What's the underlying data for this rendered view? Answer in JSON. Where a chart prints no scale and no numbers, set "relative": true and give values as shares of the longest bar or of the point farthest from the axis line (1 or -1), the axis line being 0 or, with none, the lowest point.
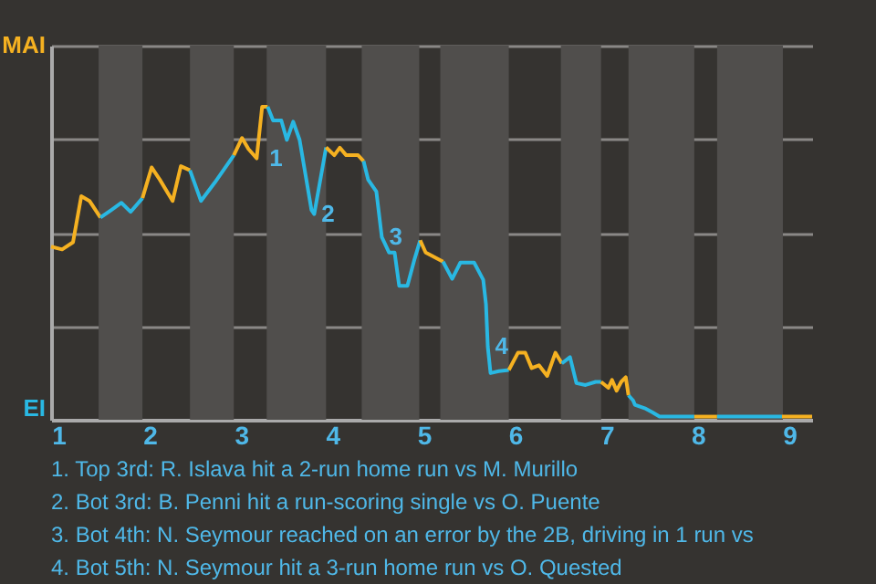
{
  "chart_data": {
    "type": "line",
    "relative": true,
    "xlim": [
      0.92,
      9.25
    ],
    "xticks": [
      1,
      2,
      3,
      4,
      5,
      6,
      7,
      8,
      9
    ],
    "grid": "y",
    "marker": "none",
    "line_style": "solid",
    "series": [
      {
        "color": "#f5b121",
        "x": [
          0.92,
          1.04,
          1.16,
          1.25,
          1.34,
          1.46
        ],
        "values": [
          0.553,
          0.544,
          0.567,
          0.714,
          0.699,
          0.646
        ]
      },
      {
        "color": "#29b8e3",
        "x": [
          1.46,
          1.58,
          1.69,
          1.79,
          1.92
        ],
        "values": [
          0.646,
          0.67,
          0.693,
          0.664,
          0.708
        ]
      },
      {
        "color": "#f5b121",
        "x": [
          1.92,
          2.02,
          2.11,
          2.25,
          2.34,
          2.44
        ],
        "values": [
          0.708,
          0.806,
          0.767,
          0.699,
          0.81,
          0.797
        ]
      },
      {
        "color": "#29b8e3",
        "x": [
          2.44,
          2.56,
          2.71,
          2.92
        ],
        "values": [
          0.797,
          0.699,
          0.757,
          0.845
        ]
      },
      {
        "color": "#f5b121",
        "x": [
          2.92,
          3.01,
          3.08,
          3.17,
          3.23,
          3.29
        ],
        "values": [
          0.845,
          0.9,
          0.865,
          0.835,
          1,
          1
        ]
      },
      {
        "color": "#29b8e3",
        "x": [
          3.29,
          3.35,
          3.44,
          3.5,
          3.57,
          3.64,
          3.77,
          3.8,
          3.93
        ],
        "values": [
          1,
          0.956,
          0.956,
          0.894,
          0.952,
          0.894,
          0.67,
          0.657,
          0.87
        ]
      },
      {
        "color": "#f5b121",
        "x": [
          3.93,
          4.02,
          4.08,
          4.15,
          4.28,
          4.34
        ],
        "values": [
          0.87,
          0.845,
          0.869,
          0.845,
          0.845,
          0.826
        ]
      },
      {
        "color": "#29b8e3",
        "x": [
          4.34,
          4.39,
          4.48,
          4.54,
          4.62,
          4.68,
          4.73,
          4.82,
          4.9,
          4.96
        ],
        "values": [
          0.826,
          0.767,
          0.729,
          0.583,
          0.534,
          0.534,
          0.428,
          0.428,
          0.515,
          0.573
        ]
      },
      {
        "color": "#f5b121",
        "x": [
          4.96,
          5.02,
          5.21
        ],
        "values": [
          0.573,
          0.534,
          0.505
        ]
      },
      {
        "color": "#29b8e3",
        "x": [
          5.21,
          5.31,
          5.4,
          5.55,
          5.65,
          5.68,
          5.7,
          5.73,
          5.82,
          5.93
        ],
        "values": [
          0.505,
          0.45,
          0.502,
          0.502,
          0.447,
          0.369,
          0.233,
          0.149,
          0.155,
          0.159
        ]
      },
      {
        "color": "#f5b121",
        "x": [
          5.93,
          6.03,
          6.11,
          6.18,
          6.26,
          6.35,
          6.44,
          6.51
        ],
        "values": [
          0.159,
          0.214,
          0.214,
          0.165,
          0.174,
          0.14,
          0.214,
          0.18
        ]
      },
      {
        "color": "#29b8e3",
        "x": [
          6.51,
          6.6,
          6.67,
          6.77,
          6.88,
          6.94
        ],
        "values": [
          0.18,
          0.2,
          0.117,
          0.111,
          0.121,
          0.121
        ]
      },
      {
        "color": "#f5b121",
        "x": [
          6.94,
          7.02,
          7.06,
          7.11,
          7.16,
          7.21,
          7.24
        ],
        "values": [
          0.121,
          0.102,
          0.127,
          0.093,
          0.121,
          0.136,
          0.078
        ]
      },
      {
        "color": "#29b8e3",
        "x": [
          7.24,
          7.29,
          7.31,
          7.43,
          7.5,
          7.58,
          7.94,
          7.96
        ],
        "values": [
          0.078,
          0.062,
          0.048,
          0.035,
          0.024,
          0.01,
          0.01,
          0.01
        ]
      },
      {
        "color": "#f5b121",
        "x": [
          7.96,
          8.21
        ],
        "values": [
          0.01,
          0.01
        ]
      },
      {
        "color": "#29b8e3",
        "x": [
          8.21,
          8.92
        ],
        "values": [
          0.01,
          0.01
        ]
      },
      {
        "color": "#f5b121",
        "x": [
          8.92,
          9.25
        ],
        "values": [
          0.01,
          0.01
        ]
      }
    ],
    "bands": [
      {
        "axis": "x",
        "from": 1.44,
        "to": 1.92,
        "color": "#504e4c"
      },
      {
        "axis": "x",
        "from": 2.44,
        "to": 2.92,
        "color": "#504e4c"
      },
      {
        "axis": "x",
        "from": 3.28,
        "to": 3.93,
        "color": "#504e4c"
      },
      {
        "axis": "x",
        "from": 4.32,
        "to": 4.95,
        "color": "#504e4c"
      },
      {
        "axis": "x",
        "from": 5.18,
        "to": 5.93,
        "color": "#504e4c"
      },
      {
        "axis": "x",
        "from": 6.5,
        "to": 6.94,
        "color": "#504e4c"
      },
      {
        "axis": "x",
        "from": 7.24,
        "to": 7.96,
        "color": "#504e4c"
      },
      {
        "axis": "x",
        "from": 8.21,
        "to": 8.93,
        "color": "#504e4c"
      }
    ],
    "annotations": [
      "MAI",
      "EI",
      {
        "text": "1",
        "x": 3.23,
        "y": 0.835
      },
      {
        "text": "2",
        "x": 3.8,
        "y": 0.657
      },
      {
        "text": "3",
        "x": 4.54,
        "y": 0.583
      },
      {
        "text": "4",
        "x": 5.7,
        "y": 0.233
      },
      "1. Top 3rd: R. Islava hit a 2-run home run vs M. Murillo",
      "2. Bot 3rd: B. Penni hit a run-scoring single vs O. Puente",
      "3. Bot 4th: N. Seymour reached on an error by the 2B, driving in 1 run vs",
      "4. Bot 5th: N. Seymour hit a 3-run home run vs O. Quested"
    ]
  }
}
